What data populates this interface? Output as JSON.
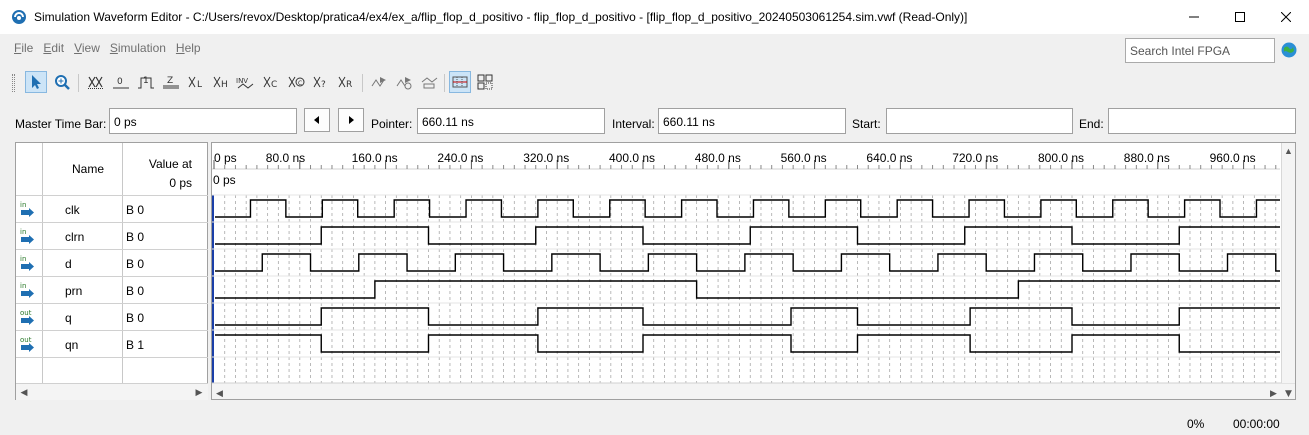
{
  "window": {
    "title": "Simulation Waveform Editor - C:/Users/revox/Desktop/pratica4/ex4/ex_a/flip_flop_d_positivo - flip_flop_d_positivo - [flip_flop_d_positivo_20240503061254.sim.vwf (Read-Only)]"
  },
  "menu": [
    {
      "first": "F",
      "rest": "ile"
    },
    {
      "first": "E",
      "rest": "dit"
    },
    {
      "first": "V",
      "rest": "iew"
    },
    {
      "first": "S",
      "rest": "imulation"
    },
    {
      "first": "H",
      "rest": "elp"
    }
  ],
  "search": {
    "placeholder": "Search Intel FPGA"
  },
  "toolbar": {
    "icons": [
      "selection-tool",
      "zoom-tool",
      "forcing-unknown",
      "forcing-low",
      "forcing-high",
      "high-impedance",
      "weak-low",
      "weak-high",
      "invert",
      "count-value",
      "forcing-clock",
      "arbitrary-value",
      "random-value",
      "run-functional-simulation",
      "run-timing-simulation",
      "generate-netlist",
      "snap-to-grid",
      "group-nodes"
    ],
    "value_labels": [
      "0",
      "1",
      "Z",
      "L",
      "H",
      "INV",
      "C",
      "C",
      "?",
      "R"
    ]
  },
  "timebar": {
    "master_label": "Master Time Bar:",
    "master_value": "0 ps",
    "pointer_label": "Pointer:",
    "pointer_value": "660.11 ns",
    "interval_label": "Interval:",
    "interval_value": "660.11 ns",
    "start_label": "Start:",
    "start_value": "",
    "end_label": "End:",
    "end_value": ""
  },
  "signal_table": {
    "name_header": "Name",
    "value_header_line1": "Value at",
    "value_header_line2": "0 ps",
    "signals": [
      {
        "direction": "in",
        "name": "clk",
        "value": "B 0"
      },
      {
        "direction": "in",
        "name": "clrn",
        "value": "B 0"
      },
      {
        "direction": "in",
        "name": "d",
        "value": "B 0"
      },
      {
        "direction": "in",
        "name": "prn",
        "value": "B 0"
      },
      {
        "direction": "out",
        "name": "q",
        "value": "B 0"
      },
      {
        "direction": "out",
        "name": "qn",
        "value": "B 1"
      }
    ]
  },
  "timeline": {
    "cursor_label": "0 ps",
    "ticks": [
      {
        "t": 0,
        "label": "0 ps"
      },
      {
        "t": 80,
        "label": "80.0 ns"
      },
      {
        "t": 160,
        "label": "160.0 ns"
      },
      {
        "t": 240,
        "label": "240.0 ns"
      },
      {
        "t": 320,
        "label": "320.0 ns"
      },
      {
        "t": 400,
        "label": "400.0 ns"
      },
      {
        "t": 480,
        "label": "480.0 ns"
      },
      {
        "t": 560,
        "label": "560.0 ns"
      },
      {
        "t": 640,
        "label": "640.0 ns"
      },
      {
        "t": 720,
        "label": "720.0 ns"
      },
      {
        "t": 800,
        "label": "800.0 ns"
      },
      {
        "t": 880,
        "label": "880.0 ns"
      },
      {
        "t": 960,
        "label": "960.0 ns"
      }
    ],
    "end_time_ns": 1000
  },
  "waveforms": {
    "clk": {
      "initial": 0,
      "transitions": [
        34,
        67,
        101,
        134,
        168,
        201,
        235,
        268,
        302,
        335,
        369,
        402,
        436,
        469,
        503,
        536,
        570,
        603,
        637,
        670,
        704,
        737,
        771,
        804,
        838,
        871,
        905,
        938,
        972
      ]
    },
    "clrn": {
      "initial": 0,
      "transitions": [
        100,
        200,
        300,
        400,
        500,
        600,
        700,
        800,
        900
      ]
    },
    "d": {
      "initial": 0,
      "transitions": [
        45,
        90,
        135,
        180,
        225,
        270,
        315,
        360,
        405,
        450,
        495,
        540,
        585,
        630,
        675,
        720,
        765,
        810,
        855,
        900,
        945,
        990
      ]
    },
    "prn": {
      "initial": 0,
      "transitions": [
        150,
        450,
        750
      ]
    },
    "q": {
      "initial": 0,
      "transitions": [
        100,
        200,
        302,
        400,
        538,
        600,
        705,
        800,
        900
      ]
    },
    "qn": {
      "initial": 1,
      "transitions": [
        100,
        200,
        302,
        400,
        538,
        600,
        705,
        800,
        900
      ]
    }
  },
  "status": {
    "progress": "0%",
    "elapsed": "00:00:00"
  }
}
